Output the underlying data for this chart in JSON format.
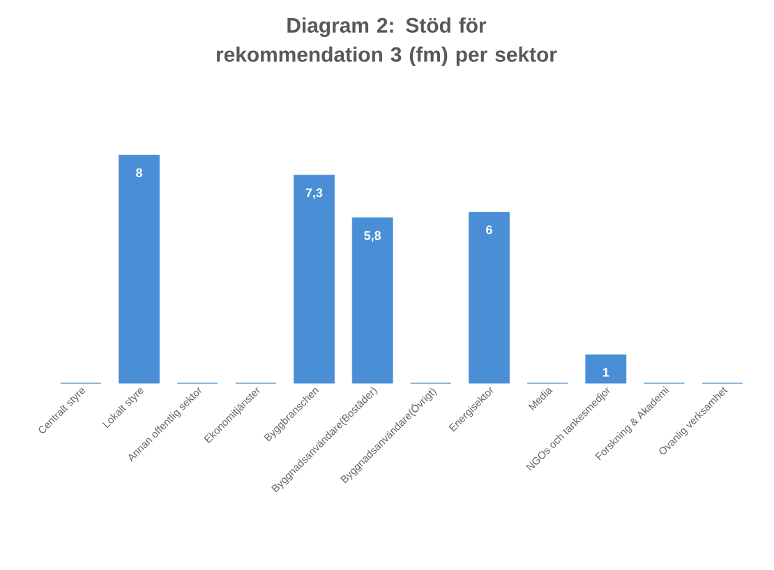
{
  "chart_data": {
    "type": "bar",
    "title": "Diagram 2: Stöd för rekommendation 3 (fm) per sektor",
    "categories": [
      "Centralt styre",
      "Lokalt styre",
      "Annan offentlig sektor",
      "Ekonomitjänster",
      "Byggbranschen",
      "Byggnadsanvändare(Bostäder)",
      "Byggnadsanvändare(Övrigt)",
      "Energisektor",
      "Media",
      "NGOs och tankesmedjor",
      "Forskning & Akademi",
      "Ovanlig verksamhet"
    ],
    "values": [
      0,
      8,
      0,
      0,
      7.3,
      5.8,
      0,
      6,
      0,
      1,
      0,
      0
    ],
    "value_labels": [
      null,
      "8",
      null,
      null,
      "7,3",
      "5,8",
      null,
      "6",
      null,
      "1",
      null,
      null
    ],
    "color": "#4a8fd6"
  }
}
